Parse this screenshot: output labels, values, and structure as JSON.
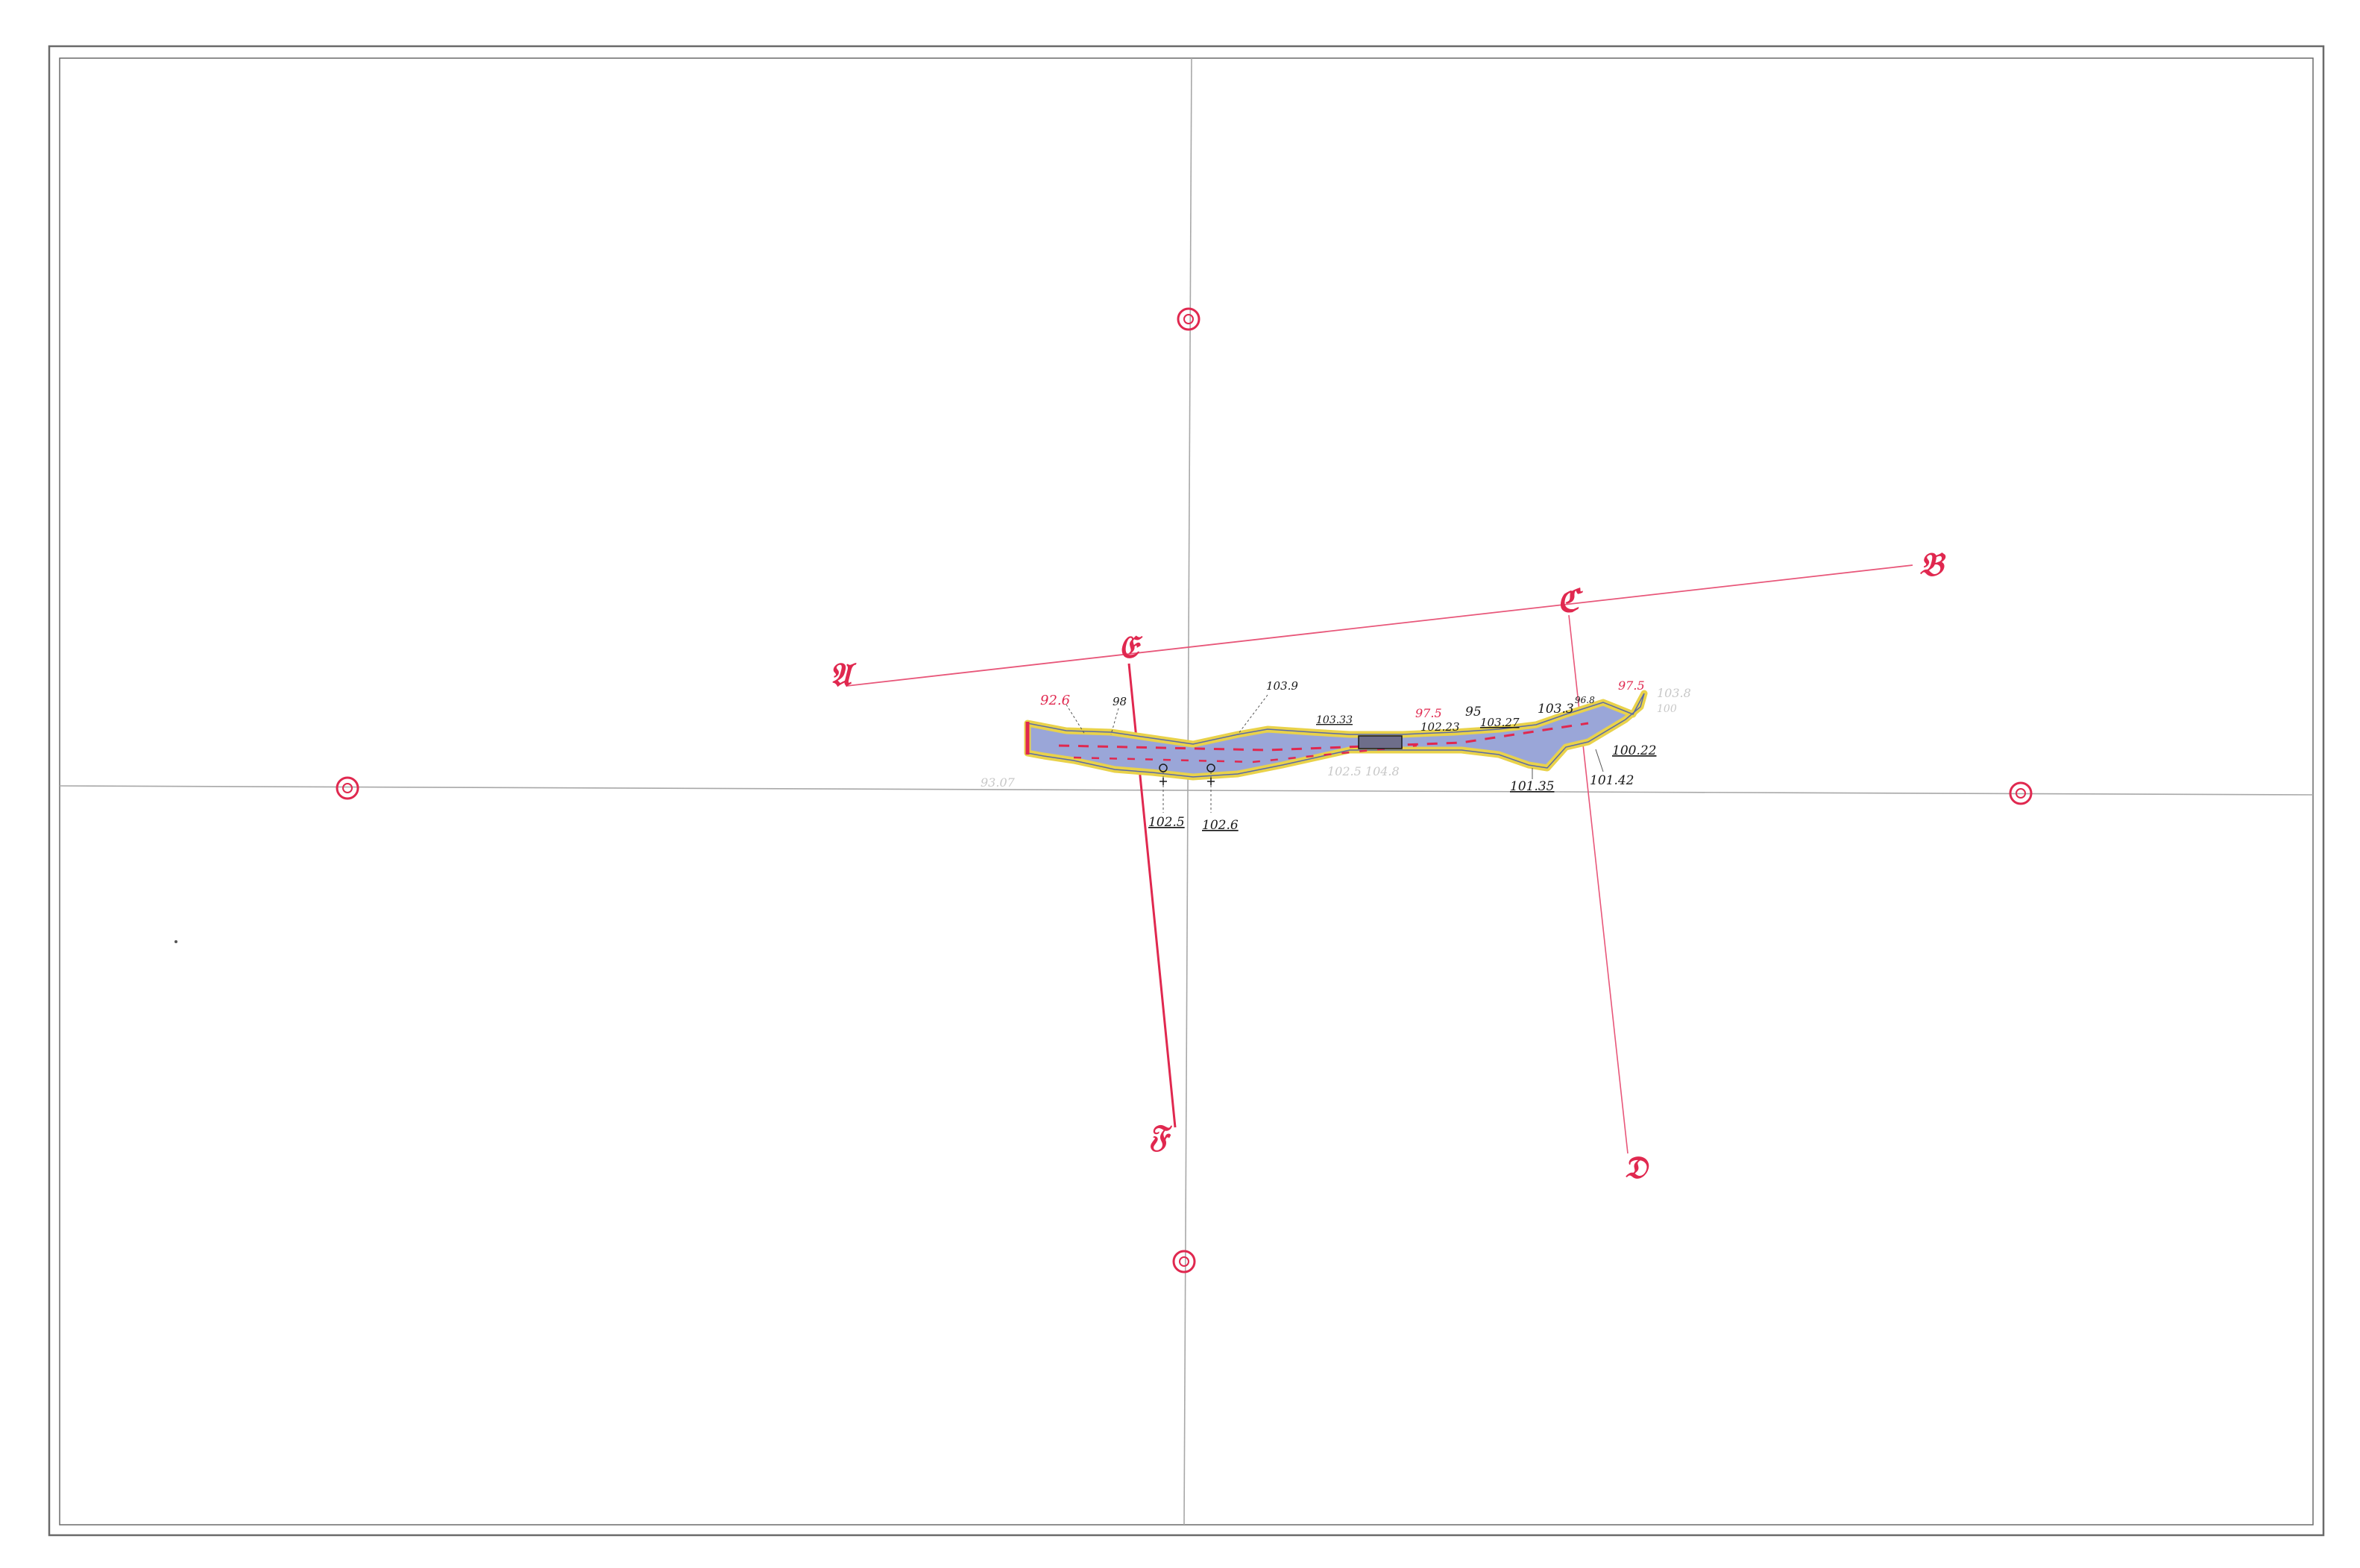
{
  "colors": {
    "paper": "#ffffff",
    "frame": "#6a6a6a",
    "grid_line": "#a8a8a8",
    "section_line": "#e8577a",
    "marker": "#e0284f",
    "cave_fill": "#9aa6d8",
    "cave_outline": "#e9d24a",
    "cave_dash": "#e0284f",
    "elevation_black": "#1a1a1a",
    "elevation_red": "#e0284f",
    "faint_note": "#c8c8c8"
  },
  "section_letters": {
    "A": "𝔄",
    "B": "𝔅",
    "C": "ℭ",
    "D": "𝔇",
    "E": "𝔈",
    "F": "𝔉"
  },
  "elevations": {
    "e_92_6": "92.6",
    "e_98": "98",
    "e_103_9": "103.9",
    "e_103_33": "103.33",
    "e_97_5_left": "97.5",
    "e_102_23": "102.23",
    "e_95": "95",
    "e_103_27": "103.27",
    "e_103_3": "103.3",
    "e_96_8": "96.8",
    "e_97_5_right": "97.5",
    "e_100_22": "100.22",
    "e_101_35": "101.35",
    "e_101_42": "101.42",
    "e_102_5": "102.5",
    "e_102_6": "102.6"
  },
  "faint_notes": {
    "n_left": "93.07",
    "n_mid": "102.5 104.8",
    "n_right": "103.8",
    "n_below": "100"
  }
}
